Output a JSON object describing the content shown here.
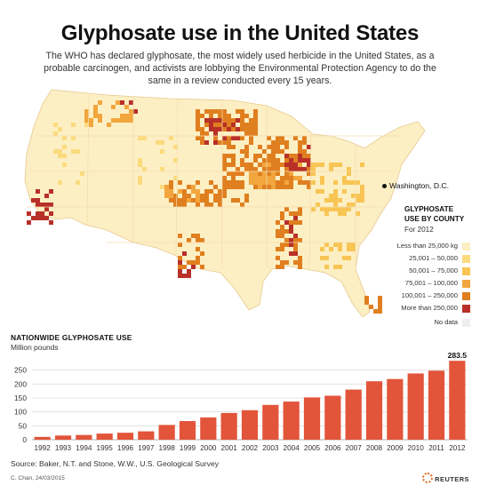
{
  "header": {
    "title": "Glyphosate use in the United States",
    "subtitle": "The WHO has declared glyphosate, the most widely used herbicide in the United States, as a probable carcinogen, and activists are lobbying the Environmental Protection Agency to do the same in a review conducted every 15 years."
  },
  "map": {
    "dc_label": "Washington, D.C.",
    "legend_title_line1": "GLYPHOSATE",
    "legend_title_line2": "USE BY COUNTY",
    "legend_year": "For 2012",
    "legend": [
      {
        "label": "Less than 25,000 kg",
        "color": "#fdefc4"
      },
      {
        "label": "25,001 – 50,000",
        "color": "#fbdb7e"
      },
      {
        "label": "50,001 – 75,000",
        "color": "#f8c554"
      },
      {
        "label": "75,001 – 100,000",
        "color": "#f2a63d"
      },
      {
        "label": "100,001 – 250,000",
        "color": "#e07f1f"
      },
      {
        "label": "More than 250,000",
        "color": "#b83028"
      },
      {
        "label": "No data",
        "color": "#eeeeee"
      }
    ]
  },
  "chart_data": {
    "type": "bar",
    "title": "NATIONWIDE GLYPHOSATE USE",
    "ylabel": "Million pounds",
    "categories": [
      "1992",
      "1993",
      "1994",
      "1995",
      "1996",
      "1997",
      "1998",
      "1999",
      "2000",
      "2001",
      "2002",
      "2003",
      "2004",
      "2005",
      "2006",
      "2007",
      "2008",
      "2009",
      "2010",
      "2011",
      "2012"
    ],
    "values": [
      10,
      15,
      17,
      22,
      25,
      30,
      53,
      67,
      80,
      96,
      106,
      125,
      137,
      152,
      158,
      180,
      210,
      218,
      238,
      248,
      283.5
    ],
    "data_labels": [
      {
        "category": "2012",
        "text": "283.5"
      }
    ],
    "ylim": [
      0,
      300
    ],
    "yticks": [
      0,
      50,
      100,
      150,
      200,
      250
    ],
    "grid": true,
    "bar_color": "#e2553a"
  },
  "footer": {
    "source": "Source: Baker, N.T. and Stone, W.W., U.S. Geological Survey",
    "credit": "C. Chan, 24/03/2015",
    "brand": "REUTERS"
  }
}
